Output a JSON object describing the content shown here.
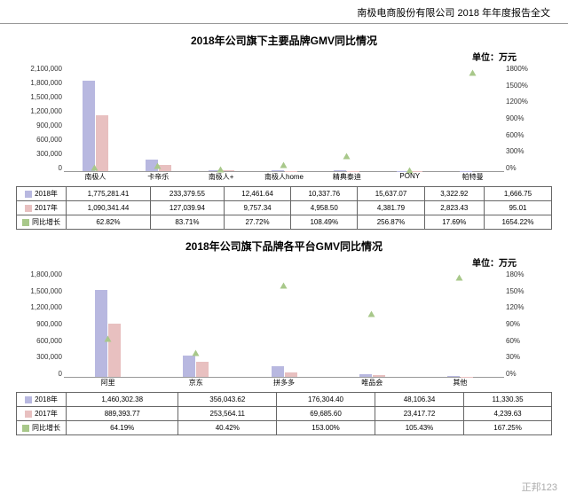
{
  "header": "南极电商股份有限公司 2018 年年度报告全文",
  "watermark": "正邦123",
  "unit_label": "单位：万元",
  "colors": {
    "bar2018": "#b8b8e0",
    "bar2017": "#e8c0c0",
    "marker": "#a8c88a",
    "border": "#666666"
  },
  "chart1": {
    "title": "2018年公司旗下主要品牌GMV同比情况",
    "categories": [
      "南极人",
      "卡帝乐",
      "南极人+",
      "南极人home",
      "精典泰迪",
      "PONY",
      "帕特曼"
    ],
    "y1_max": 2100000,
    "y1_ticks": [
      "2,100,000",
      "1,800,000",
      "1,500,000",
      "1,200,000",
      "900,000",
      "600,000",
      "300,000",
      "0"
    ],
    "y2_ticks": [
      "1800%",
      "1500%",
      "1200%",
      "900%",
      "600%",
      "300%",
      "0%"
    ],
    "y2_max": 1800,
    "rows": {
      "2018年": [
        "1,775,281.41",
        "233,379.55",
        "12,461.64",
        "10,337.76",
        "15,637.07",
        "3,322.92",
        "1,666.75"
      ],
      "2017年": [
        "1,090,341.44",
        "127,039.94",
        "9,757.34",
        "4,958.50",
        "4,381.79",
        "2,823.43",
        "95.01"
      ],
      "同比增长": [
        "62.82%",
        "83.71%",
        "27.72%",
        "108.49%",
        "256.87%",
        "17.69%",
        "1654.22%"
      ]
    },
    "v2018": [
      1775281,
      233379,
      12461,
      10337,
      15637,
      3322,
      1666
    ],
    "v2017": [
      1090341,
      127039,
      9757,
      4958,
      4381,
      2823,
      95
    ],
    "yoy": [
      62.82,
      83.71,
      27.72,
      108.49,
      256.87,
      17.69,
      1654.22
    ]
  },
  "chart2": {
    "title": "2018年公司旗下品牌各平台GMV同比情况",
    "categories": [
      "阿里",
      "京东",
      "拼多多",
      "唯品会",
      "其他"
    ],
    "y1_max": 1800000,
    "y1_ticks": [
      "1,800,000",
      "1,500,000",
      "1,200,000",
      "900,000",
      "600,000",
      "300,000",
      "0"
    ],
    "y2_ticks": [
      "180%",
      "150%",
      "120%",
      "90%",
      "60%",
      "30%",
      "0%"
    ],
    "y2_max": 180,
    "rows": {
      "2018年": [
        "1,460,302.38",
        "356,043.62",
        "176,304.40",
        "48,106.34",
        "11,330.35"
      ],
      "2017年": [
        "889,393.77",
        "253,564.11",
        "69,685.60",
        "23,417.72",
        "4,239.63"
      ],
      "同比增长": [
        "64.19%",
        "40.42%",
        "153.00%",
        "105.43%",
        "167.25%"
      ]
    },
    "v2018": [
      1460302,
      356043,
      176304,
      48106,
      11330
    ],
    "v2017": [
      889393,
      253564,
      69685,
      23417,
      4239
    ],
    "yoy": [
      64.19,
      40.42,
      153.0,
      105.43,
      167.25
    ]
  },
  "row_labels": [
    "2018年",
    "2017年",
    "同比增长"
  ]
}
